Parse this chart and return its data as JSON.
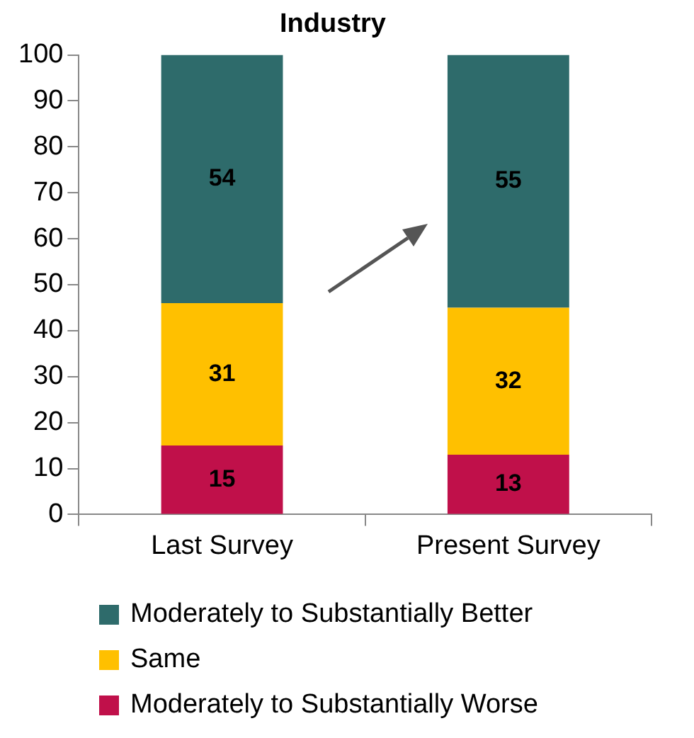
{
  "chart_data": {
    "type": "bar",
    "title": "Industry",
    "categories": [
      "Last Survey",
      "Present Survey"
    ],
    "stacked": true,
    "series": [
      {
        "name": "Moderately to Substantially Worse",
        "color": "#c0104a",
        "values": [
          15,
          13
        ]
      },
      {
        "name": "Same",
        "color": "#ffc000",
        "values": [
          31,
          32
        ]
      },
      {
        "name": "Moderately to Substantially Better",
        "color": "#2e6b6b",
        "values": [
          54,
          55
        ]
      }
    ],
    "ylim": [
      0,
      100
    ],
    "yticks": [
      0,
      10,
      20,
      30,
      40,
      50,
      60,
      70,
      80,
      90,
      100
    ],
    "grid": false,
    "legend": "bottom",
    "data_labels": true
  }
}
